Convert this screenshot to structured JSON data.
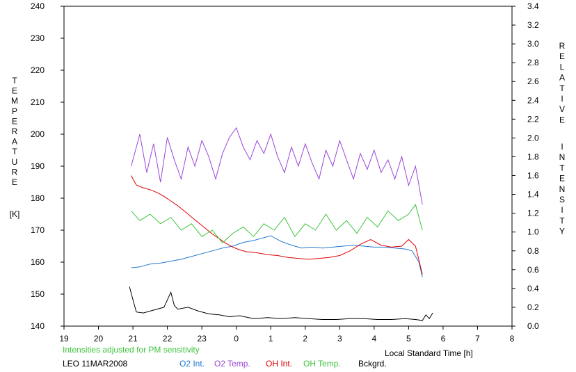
{
  "chart_data": {
    "type": "line",
    "title": "",
    "xlabel": "Local Standard Time [h]",
    "xlim": [
      19,
      32
    ],
    "x_tick_labels": [
      "19",
      "20",
      "21",
      "22",
      "23",
      "0",
      "1",
      "2",
      "3",
      "4",
      "5",
      "6",
      "7",
      "8"
    ],
    "left_axis": {
      "label_letters": [
        "T",
        "E",
        "M",
        "P",
        "E",
        "R",
        "A",
        "T",
        "U",
        "R",
        "E"
      ],
      "unit": "[K]",
      "ylim": [
        140,
        240
      ],
      "ticks": [
        "140",
        "150",
        "160",
        "170",
        "180",
        "190",
        "200",
        "210",
        "220",
        "230",
        "240"
      ]
    },
    "right_axis": {
      "label_letters_1": [
        "R",
        "E",
        "L",
        "A",
        "T",
        "I",
        "V",
        "E"
      ],
      "label_letters_2": [
        "I",
        "N",
        "T",
        "E",
        "N",
        "S",
        "I",
        "T",
        "Y"
      ],
      "ylim": [
        0.0,
        3.4
      ],
      "ticks": [
        "0.0",
        "0.2",
        "0.4",
        "0.6",
        "0.8",
        "1.0",
        "1.2",
        "1.4",
        "1.6",
        "1.8",
        "2.0",
        "2.2",
        "2.4",
        "2.6",
        "2.8",
        "3.0",
        "3.2",
        "3.4"
      ]
    },
    "note": "Intensities adjusted for PM sensitivity",
    "station": "LEO 11MAR2008",
    "series": [
      {
        "name": "O2 Int.",
        "color": "#1f77d0",
        "axis": "right",
        "x": [
          20.95,
          21.2,
          21.5,
          21.8,
          22.1,
          22.4,
          22.7,
          23.0,
          23.3,
          23.6,
          23.9,
          24.2,
          24.5,
          24.8,
          25.0,
          25.3,
          25.6,
          25.9,
          26.2,
          26.5,
          26.8,
          27.1,
          27.4,
          27.7,
          28.0,
          28.3,
          28.6,
          28.9,
          29.1,
          29.3,
          29.4
        ],
        "y": [
          0.62,
          0.63,
          0.66,
          0.67,
          0.69,
          0.71,
          0.74,
          0.77,
          0.8,
          0.83,
          0.85,
          0.89,
          0.91,
          0.94,
          0.96,
          0.9,
          0.86,
          0.83,
          0.84,
          0.83,
          0.84,
          0.85,
          0.86,
          0.85,
          0.84,
          0.84,
          0.83,
          0.82,
          0.8,
          0.68,
          0.52
        ]
      },
      {
        "name": "O2 Temp.",
        "color": "#9a45d8",
        "axis": "left",
        "x": [
          20.95,
          21.2,
          21.4,
          21.6,
          21.8,
          22.0,
          22.2,
          22.4,
          22.6,
          22.8,
          23.0,
          23.2,
          23.4,
          23.6,
          23.8,
          24.0,
          24.2,
          24.4,
          24.6,
          24.8,
          25.0,
          25.2,
          25.4,
          25.6,
          25.8,
          26.0,
          26.2,
          26.4,
          26.6,
          26.8,
          27.0,
          27.2,
          27.4,
          27.6,
          27.8,
          28.0,
          28.2,
          28.4,
          28.6,
          28.8,
          29.0,
          29.2,
          29.4
        ],
        "y": [
          190,
          200,
          188,
          197,
          185,
          199,
          192,
          186,
          196,
          190,
          198,
          193,
          186,
          194,
          199,
          202,
          196,
          192,
          198,
          194,
          200,
          193,
          188,
          196,
          190,
          197,
          191,
          186,
          195,
          190,
          198,
          192,
          186,
          194,
          189,
          195,
          188,
          192,
          186,
          193,
          184,
          190,
          178
        ]
      },
      {
        "name": "OH Int.",
        "color": "#e00000",
        "axis": "right",
        "x": [
          20.95,
          21.1,
          21.3,
          21.5,
          21.7,
          21.9,
          22.1,
          22.3,
          22.5,
          22.7,
          22.9,
          23.1,
          23.3,
          23.5,
          23.7,
          23.9,
          24.1,
          24.3,
          24.6,
          24.9,
          25.2,
          25.5,
          25.8,
          26.1,
          26.4,
          26.7,
          27.0,
          27.3,
          27.6,
          27.9,
          28.2,
          28.5,
          28.8,
          29.0,
          29.2,
          29.4
        ],
        "y": [
          1.6,
          1.5,
          1.47,
          1.45,
          1.42,
          1.38,
          1.33,
          1.28,
          1.22,
          1.16,
          1.1,
          1.04,
          0.98,
          0.93,
          0.88,
          0.84,
          0.81,
          0.79,
          0.78,
          0.76,
          0.75,
          0.73,
          0.72,
          0.71,
          0.72,
          0.73,
          0.75,
          0.8,
          0.87,
          0.92,
          0.86,
          0.84,
          0.85,
          0.92,
          0.85,
          0.55
        ]
      },
      {
        "name": "OH Temp.",
        "color": "#3cc43c",
        "axis": "left",
        "x": [
          20.95,
          21.2,
          21.5,
          21.8,
          22.1,
          22.4,
          22.7,
          23.0,
          23.3,
          23.6,
          23.9,
          24.2,
          24.5,
          24.8,
          25.1,
          25.4,
          25.7,
          26.0,
          26.3,
          26.6,
          26.9,
          27.2,
          27.5,
          27.8,
          28.1,
          28.4,
          28.7,
          29.0,
          29.2,
          29.4
        ],
        "y": [
          176,
          173,
          175,
          172,
          174,
          170,
          172,
          168,
          170,
          166,
          169,
          171,
          168,
          172,
          170,
          174,
          168,
          172,
          170,
          175,
          170,
          173,
          169,
          174,
          171,
          176,
          173,
          175,
          178,
          170
        ]
      },
      {
        "name": "Bckgrd.",
        "color": "#000000",
        "axis": "right",
        "x": [
          20.9,
          21.0,
          21.1,
          21.3,
          21.6,
          21.9,
          22.1,
          22.2,
          22.3,
          22.6,
          22.9,
          23.2,
          23.5,
          23.8,
          24.1,
          24.5,
          24.9,
          25.3,
          25.7,
          26.1,
          26.5,
          26.9,
          27.3,
          27.7,
          28.1,
          28.5,
          28.9,
          29.2,
          29.4,
          29.5,
          29.6,
          29.7
        ],
        "y": [
          0.42,
          0.28,
          0.15,
          0.14,
          0.17,
          0.2,
          0.36,
          0.22,
          0.18,
          0.2,
          0.16,
          0.13,
          0.12,
          0.1,
          0.11,
          0.08,
          0.09,
          0.08,
          0.09,
          0.08,
          0.07,
          0.07,
          0.08,
          0.08,
          0.07,
          0.07,
          0.08,
          0.07,
          0.06,
          0.12,
          0.08,
          0.14
        ]
      }
    ]
  }
}
